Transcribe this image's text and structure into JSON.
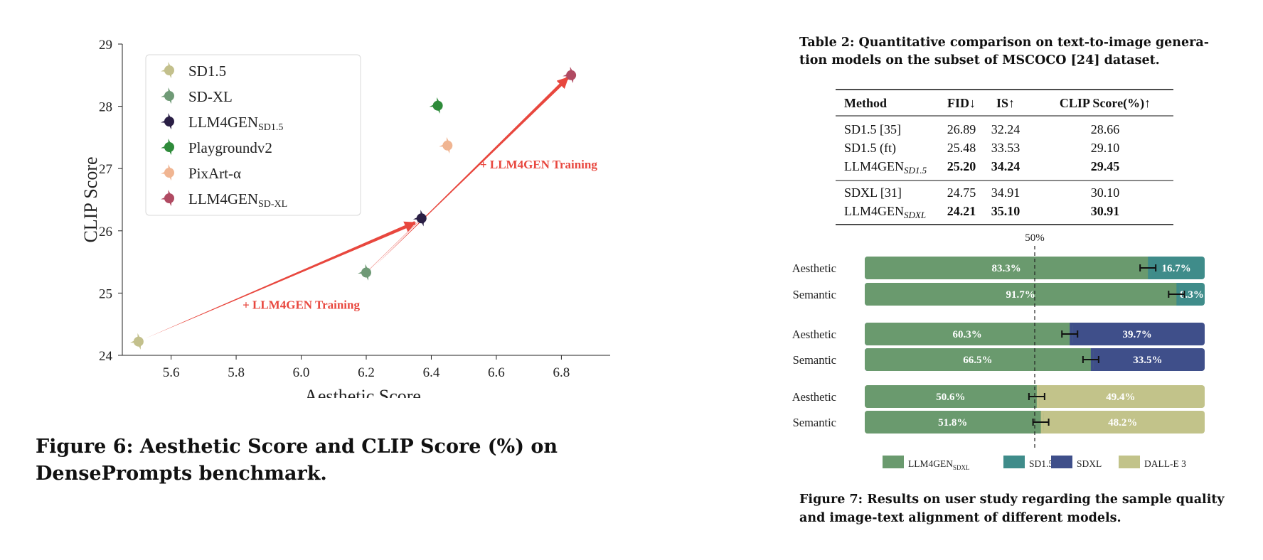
{
  "figure6": {
    "caption": "Figure 6: Aesthetic Score and CLIP Score (%) on DensePrompts benchmark.",
    "chart_data": {
      "type": "scatter",
      "xlabel": "Aesthetic Score",
      "ylabel": "CLIP Score",
      "xlim": [
        5.45,
        6.95
      ],
      "ylim": [
        24,
        29
      ],
      "xticks": [
        5.6,
        5.8,
        6.0,
        6.2,
        6.4,
        6.6,
        6.8
      ],
      "yticks": [
        24,
        25,
        26,
        27,
        28,
        29
      ],
      "legend_position": "top-left",
      "series": [
        {
          "name": "SD1.5",
          "sub": "",
          "color": "#c3c08c",
          "x": 5.5,
          "y": 24.22
        },
        {
          "name": "SD-XL",
          "sub": "",
          "color": "#6f9a76",
          "x": 6.2,
          "y": 25.33
        },
        {
          "name": "LLM4GEN",
          "sub": "SD1.5",
          "color": "#2a1f45",
          "x": 6.37,
          "y": 26.2
        },
        {
          "name": "Playgroundv2",
          "sub": "",
          "color": "#2e8b3a",
          "x": 6.42,
          "y": 28.01
        },
        {
          "name": "PixArt-α",
          "sub": "",
          "color": "#f0b592",
          "x": 6.45,
          "y": 27.37
        },
        {
          "name": "LLM4GEN",
          "sub": "SD-XL",
          "color": "#b04a62",
          "x": 6.83,
          "y": 28.5
        }
      ],
      "annotations": [
        {
          "text": "+ LLM4GEN Training",
          "x": 6.0,
          "y": 24.75
        },
        {
          "text": "+ LLM4GEN Training",
          "x": 6.73,
          "y": 27.0
        }
      ]
    }
  },
  "table2": {
    "caption_line1": "Table 2: Quantitative comparison on text-to-image genera-",
    "caption_line2": "tion models on the subset of MSCOCO [24] dataset.",
    "headers": [
      "Method",
      "FID↓",
      "IS↑",
      "CLIP Score(%)↑"
    ],
    "rows": [
      {
        "method": "SD1.5 [35]",
        "sub": "",
        "fid": "26.89",
        "is": "32.24",
        "clip": "28.66",
        "bold": false
      },
      {
        "method": "SD1.5 (ft)",
        "sub": "",
        "fid": "25.48",
        "is": "33.53",
        "clip": "29.10",
        "bold": false
      },
      {
        "method": "LLM4GEN",
        "sub": "SD1.5",
        "fid": "25.20",
        "is": "34.24",
        "clip": "29.45",
        "bold": true
      },
      {
        "method": "SDXL [31]",
        "sub": "",
        "fid": "24.75",
        "is": "34.91",
        "clip": "30.10",
        "bold": false
      },
      {
        "method": "LLM4GEN",
        "sub": "SDXL",
        "fid": "24.21",
        "is": "35.10",
        "clip": "30.91",
        "bold": true
      }
    ]
  },
  "figure7": {
    "caption_line1": "Figure 7: Results on user study regarding the sample quality",
    "caption_line2": "and image-text alignment of different models.",
    "chart_data": {
      "type": "bar",
      "orientation": "horizontal-stacked",
      "reference_line_label": "50%",
      "reference_value": 50,
      "groups": [
        {
          "rows": [
            {
              "label": "Aesthetic",
              "left": 83.3,
              "right": 16.7,
              "right_series": "SD1.5"
            },
            {
              "label": "Semantic",
              "left": 91.7,
              "right": 8.3,
              "right_series": "SD1.5"
            }
          ]
        },
        {
          "rows": [
            {
              "label": "Aesthetic",
              "left": 60.3,
              "right": 39.7,
              "right_series": "SDXL"
            },
            {
              "label": "Semantic",
              "left": 66.5,
              "right": 33.5,
              "right_series": "SDXL"
            }
          ]
        },
        {
          "rows": [
            {
              "label": "Aesthetic",
              "left": 50.6,
              "right": 49.4,
              "right_series": "DALL-E 3"
            },
            {
              "label": "Semantic",
              "left": 51.8,
              "right": 48.2,
              "right_series": "DALL-E 3"
            }
          ]
        }
      ],
      "legend": [
        {
          "name": "LLM4GEN",
          "sub": "SDXL",
          "color": "#6a9a6e"
        },
        {
          "name": "SD1.5",
          "sub": "",
          "color": "#3f8c8a"
        },
        {
          "name": "SDXL",
          "sub": "",
          "color": "#3f4f8a"
        },
        {
          "name": "DALL-E 3",
          "sub": "",
          "color": "#c2c38a"
        }
      ],
      "left_color": "#6a9a6e"
    }
  }
}
